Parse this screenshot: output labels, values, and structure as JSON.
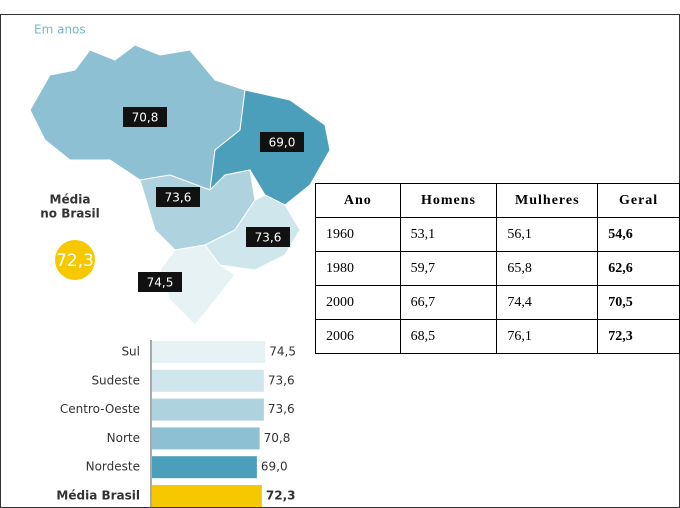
{
  "map": {
    "unit": "Em anos",
    "average_title": [
      "Média",
      "no Brasil"
    ],
    "average": "72,3",
    "labels": [
      "70,8",
      "69,0",
      "73,6",
      "73,6",
      "74,5"
    ]
  },
  "chart_data": {
    "type": "bar",
    "orientation": "horizontal",
    "categories": [
      "Sul",
      "Sudeste",
      "Centro-Oeste",
      "Norte",
      "Nordeste",
      "Média Brasil"
    ],
    "values": [
      74.5,
      73.6,
      73.6,
      70.8,
      69.0,
      72.3
    ],
    "value_labels": [
      "74,5",
      "73,6",
      "73,6",
      "70,8",
      "69,0",
      "72,3"
    ],
    "colors": [
      "#e6f2f4",
      "#cfe6ec",
      "#aed3de",
      "#8cc0d2",
      "#4c9fba",
      "#f5c800"
    ],
    "xlim": [
      0,
      75
    ]
  },
  "table": {
    "header": [
      "Ano",
      "Homens",
      "Mulheres",
      "Geral"
    ],
    "rows": [
      [
        "1960",
        "53,1",
        "56,1",
        "54,6"
      ],
      [
        "1980",
        "59,7",
        "65,8",
        "62,6"
      ],
      [
        "2000",
        "66,7",
        "74,4",
        "70,5"
      ],
      [
        "2006",
        "68,5",
        "76,1",
        "72,3"
      ]
    ]
  }
}
